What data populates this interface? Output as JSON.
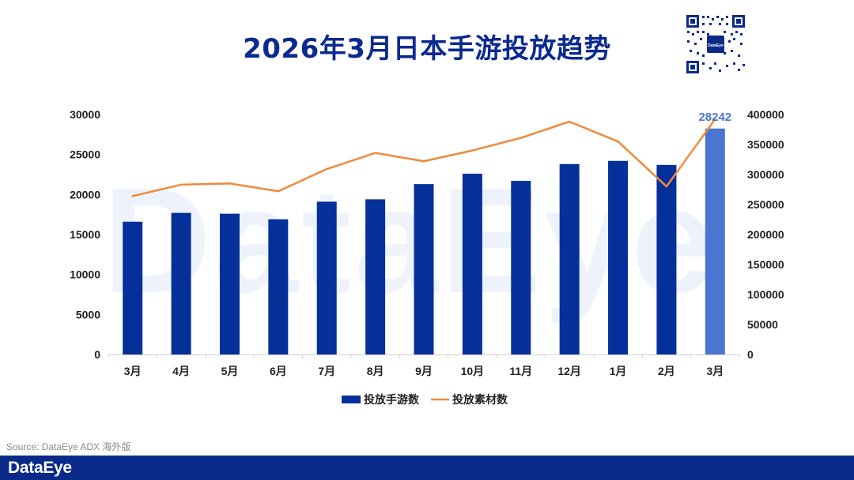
{
  "title": "2026年3月日本手游投放趋势",
  "source": "Source: DataEye ADX 海外版",
  "brand": "DataEye",
  "colors": {
    "bar": "#05309a",
    "bar_highlight": "#4a75d1",
    "line": "#ef8a3a",
    "title": "#0b2a8f",
    "footer": "#0a2a8a",
    "highlight_label": "#4a75d1"
  },
  "icons": {
    "qr": "qr-code-icon"
  },
  "chart_data": {
    "type": "bar",
    "title": "2026年3月日本手游投放趋势",
    "categories": [
      "3月",
      "4月",
      "5月",
      "6月",
      "7月",
      "8月",
      "9月",
      "10月",
      "11月",
      "12月",
      "1月",
      "2月",
      "3月"
    ],
    "series": [
      {
        "name": "投放手游数",
        "type": "bar",
        "axis": "left",
        "values": [
          16600,
          17700,
          17600,
          16900,
          19100,
          19400,
          21300,
          22600,
          21700,
          23800,
          24200,
          23700,
          28242
        ]
      },
      {
        "name": "投放素材数",
        "type": "line",
        "axis": "right",
        "values": [
          264000,
          283000,
          285000,
          272000,
          309000,
          336000,
          322000,
          340000,
          361000,
          388000,
          355000,
          280000,
          392000
        ]
      }
    ],
    "highlight_index": 12,
    "data_label": "28242",
    "ylim_left": [
      0,
      30000
    ],
    "yticks_left": [
      "0",
      "5000",
      "10000",
      "15000",
      "20000",
      "25000",
      "30000"
    ],
    "ylim_right": [
      0,
      400000
    ],
    "yticks_right": [
      "0",
      "50000",
      "100000",
      "150000",
      "200000",
      "250000",
      "300000",
      "350000",
      "400000"
    ],
    "legend": [
      "投放手游数",
      "投放素材数"
    ],
    "legend_position": "bottom",
    "grid": false
  }
}
